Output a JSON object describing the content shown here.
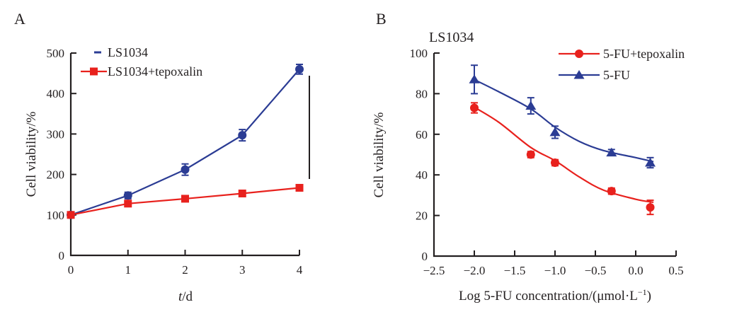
{
  "figure": {
    "background": "#ffffff",
    "text_color": "#231f20"
  },
  "colors": {
    "blue": "#2b3c94",
    "red": "#e8211d",
    "axis": "#231f20"
  },
  "panel_a": {
    "label": "A",
    "y_label": "Cell viability/%",
    "x_label_italic": "t",
    "x_label_rest": "/d",
    "significance": "***",
    "legend": [
      {
        "label": "LS1034",
        "marker": "blue-dash"
      },
      {
        "label": "LS1034+tepoxalin",
        "marker": "red-square-line"
      }
    ]
  },
  "panel_b": {
    "label": "B",
    "title": "LS1034",
    "y_label": "Cell viability/%",
    "x_label_pre": "Log 5-FU concentration/(μmol·L",
    "x_label_sup": "−1",
    "x_label_post": ")",
    "legend": [
      {
        "label": "5-FU+tepoxalin",
        "marker": "red-circle-line"
      },
      {
        "label": "5-FU",
        "marker": "blue-triangle-line"
      }
    ]
  },
  "chart_data": [
    {
      "id": "panel_a",
      "type": "line",
      "title": "",
      "xlabel": "t/d",
      "ylabel": "Cell viability/%",
      "xlim": [
        0,
        4
      ],
      "ylim": [
        0,
        500
      ],
      "xticks": [
        0,
        1,
        2,
        3,
        4
      ],
      "xtick_labels": [
        "0",
        "1",
        "2",
        "3",
        "4"
      ],
      "yticks": [
        0,
        100,
        200,
        300,
        400,
        500
      ],
      "ytick_labels": [
        "0",
        "100",
        "200",
        "300",
        "400",
        "500"
      ],
      "grid": false,
      "legend_position": "top-left-inside",
      "x": [
        0,
        1,
        2,
        3,
        4
      ],
      "series": [
        {
          "name": "LS1034",
          "color_key": "blue",
          "marker": "circle",
          "line": "straight",
          "values": [
            100,
            148,
            212,
            297,
            460
          ],
          "errors": [
            6,
            8,
            14,
            14,
            12
          ]
        },
        {
          "name": "LS1034+tepoxalin",
          "color_key": "red",
          "marker": "square",
          "line": "straight",
          "values": [
            100,
            128,
            140,
            153,
            167
          ],
          "errors": [
            5,
            5,
            5,
            5,
            6
          ]
        }
      ],
      "significance": {
        "text": "***",
        "at_x": 4,
        "between": [
          "LS1034",
          "LS1034+tepoxalin"
        ]
      }
    },
    {
      "id": "panel_b",
      "type": "scatter-fit",
      "title": "LS1034",
      "xlabel": "Log 5-FU concentration/(μmol·L⁻¹)",
      "ylabel": "Cell viability/%",
      "xlim": [
        -2.5,
        0.5
      ],
      "ylim": [
        0,
        100
      ],
      "xticks": [
        -2.5,
        -2.0,
        -1.5,
        -1.0,
        -0.5,
        0.0,
        0.5
      ],
      "xtick_labels": [
        "−2.5",
        "−2.0",
        "−1.5",
        "−1.0",
        "−0.5",
        "0.0",
        "0.5"
      ],
      "yticks": [
        0,
        20,
        40,
        60,
        80,
        100
      ],
      "ytick_labels": [
        "0",
        "20",
        "40",
        "60",
        "80",
        "100"
      ],
      "grid": false,
      "legend_position": "top-right-inside",
      "x": [
        -2.0,
        -1.3,
        -1.0,
        -0.3,
        0.18
      ],
      "series": [
        {
          "name": "5-FU+tepoxalin",
          "color_key": "red",
          "marker": "circle",
          "line": "fit",
          "values": [
            73,
            50,
            46,
            32,
            24
          ],
          "errors": [
            2.5,
            1.5,
            1.5,
            1.5,
            3.5
          ],
          "fit_curve": [
            [
              -2.03,
              74
            ],
            [
              -1.7,
              66
            ],
            [
              -1.3,
              53.5
            ],
            [
              -1.0,
              47
            ],
            [
              -0.7,
              39
            ],
            [
              -0.4,
              32.5
            ],
            [
              0.0,
              28
            ],
            [
              0.22,
              26.5
            ]
          ]
        },
        {
          "name": "5-FU",
          "color_key": "blue",
          "marker": "triangle",
          "line": "fit",
          "values": [
            87,
            74,
            61,
            51,
            46
          ],
          "errors": [
            7,
            4,
            3,
            1.5,
            2.5
          ],
          "fit_curve": [
            [
              -2.03,
              87.5
            ],
            [
              -1.7,
              81
            ],
            [
              -1.3,
              72.5
            ],
            [
              -1.0,
              63.5
            ],
            [
              -0.7,
              56.5
            ],
            [
              -0.4,
              52
            ],
            [
              0.0,
              48.5
            ],
            [
              0.22,
              46.5
            ]
          ]
        }
      ]
    }
  ]
}
